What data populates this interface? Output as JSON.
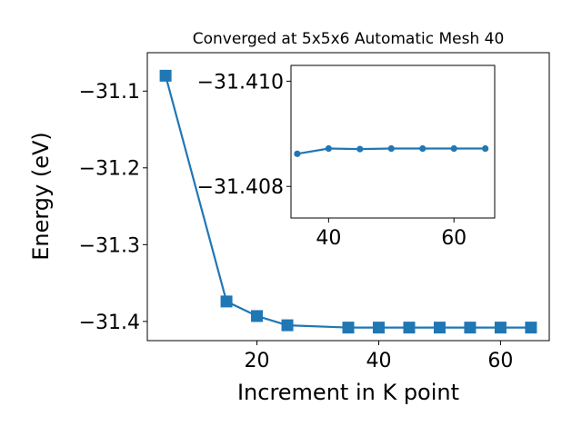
{
  "chart_data": [
    {
      "type": "line",
      "title": "Converged at 5x5x6 Automatic Mesh 40",
      "xlabel": "Increment in K point",
      "ylabel": "Energy (eV)",
      "xlim": [
        2,
        68
      ],
      "ylim": [
        -31.425,
        -31.05
      ],
      "xticks": [
        20,
        40,
        60
      ],
      "yticks": [
        -31.1,
        -31.2,
        -31.3,
        -31.4
      ],
      "xtick_labels": [
        "20",
        "40",
        "60"
      ],
      "ytick_labels": [
        "−31.1",
        "−31.2",
        "−31.3",
        "−31.4"
      ],
      "marker": "square",
      "color": "#1f77b4",
      "x": [
        5,
        15,
        20,
        25,
        35,
        40,
        45,
        50,
        55,
        60,
        65
      ],
      "y": [
        -31.08,
        -31.374,
        -31.393,
        -31.405,
        -31.408,
        -31.408,
        -31.408,
        -31.408,
        -31.408,
        -31.408,
        -31.408
      ]
    },
    {
      "type": "line",
      "role": "inset",
      "xlim": [
        34,
        66.5
      ],
      "ylim": [
        -31.4074,
        -31.4103
      ],
      "xticks": [
        40,
        60
      ],
      "yticks": [
        -31.41,
        -31.408
      ],
      "xtick_labels": [
        "40",
        "60"
      ],
      "ytick_labels": [
        "−31.410",
        "−31.408"
      ],
      "marker": "circle",
      "color": "#1f77b4",
      "x": [
        35,
        40,
        45,
        50,
        55,
        60,
        65
      ],
      "y": [
        -31.40862,
        -31.40872,
        -31.40871,
        -31.40872,
        -31.40872,
        -31.40872,
        -31.40872
      ]
    }
  ]
}
